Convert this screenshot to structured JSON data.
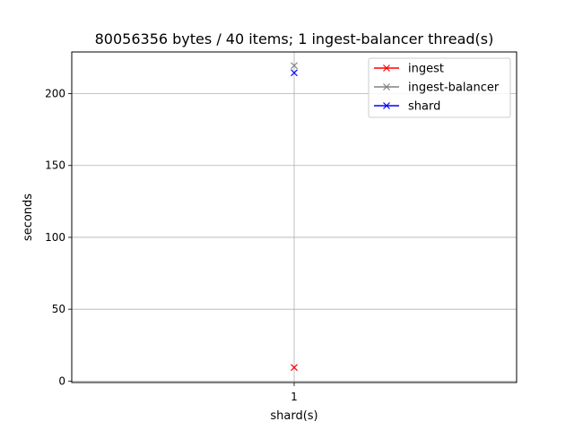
{
  "chart_data": {
    "type": "line",
    "title": "80056356 bytes / 40 items; 1 ingest-balancer thread(s)",
    "xlabel": "shard(s)",
    "ylabel": "seconds",
    "categories": [
      "1"
    ],
    "x": [
      1
    ],
    "xlim": [
      0,
      2
    ],
    "ylim": [
      -1,
      229
    ],
    "yticks": [
      0,
      50,
      100,
      150,
      200
    ],
    "grid": true,
    "legend_position": "top-right",
    "marker": "x",
    "series": [
      {
        "name": "ingest",
        "color": "#ff0000",
        "values": [
          9.5
        ]
      },
      {
        "name": "ingest-balancer",
        "color": "#808080",
        "values": [
          219.5
        ]
      },
      {
        "name": "shard",
        "color": "#0000ff",
        "values": [
          214.5
        ]
      }
    ]
  }
}
